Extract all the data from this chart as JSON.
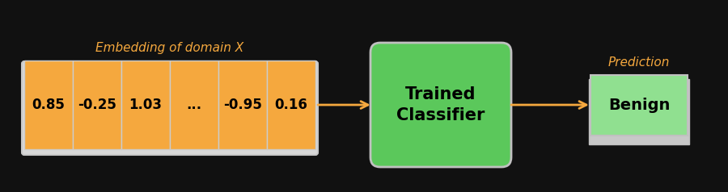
{
  "background_color": "#111111",
  "embedding_label": "Embedding of domain X",
  "embedding_values": [
    "0.85",
    "-0.25",
    "1.03",
    "...",
    "-0.95",
    "0.16"
  ],
  "embedding_box_color": "#f5a83e",
  "embedding_outer_color": "#c8c8c8",
  "embedding_outer_bg": "#d8d8d8",
  "embedding_text_color": "#000000",
  "embedding_label_color": "#f5a83e",
  "classifier_label": "Trained\nClassifier",
  "classifier_box_color": "#5bc85b",
  "classifier_edge_color": "#c0c0c0",
  "classifier_text_color": "#000000",
  "prediction_label": "Prediction",
  "prediction_value": "Benign",
  "prediction_box_color": "#90e090",
  "prediction_outer_color": "#c0c0c0",
  "prediction_outer_bg": "#c8c8c8",
  "prediction_text_color": "#000000",
  "prediction_label_color": "#f5a83e",
  "arrow_color_emb_clf": "#f5a83e",
  "arrow_color_clf_pred": "#f5a83e",
  "fig_width": 9.0,
  "fig_height": 2.38
}
